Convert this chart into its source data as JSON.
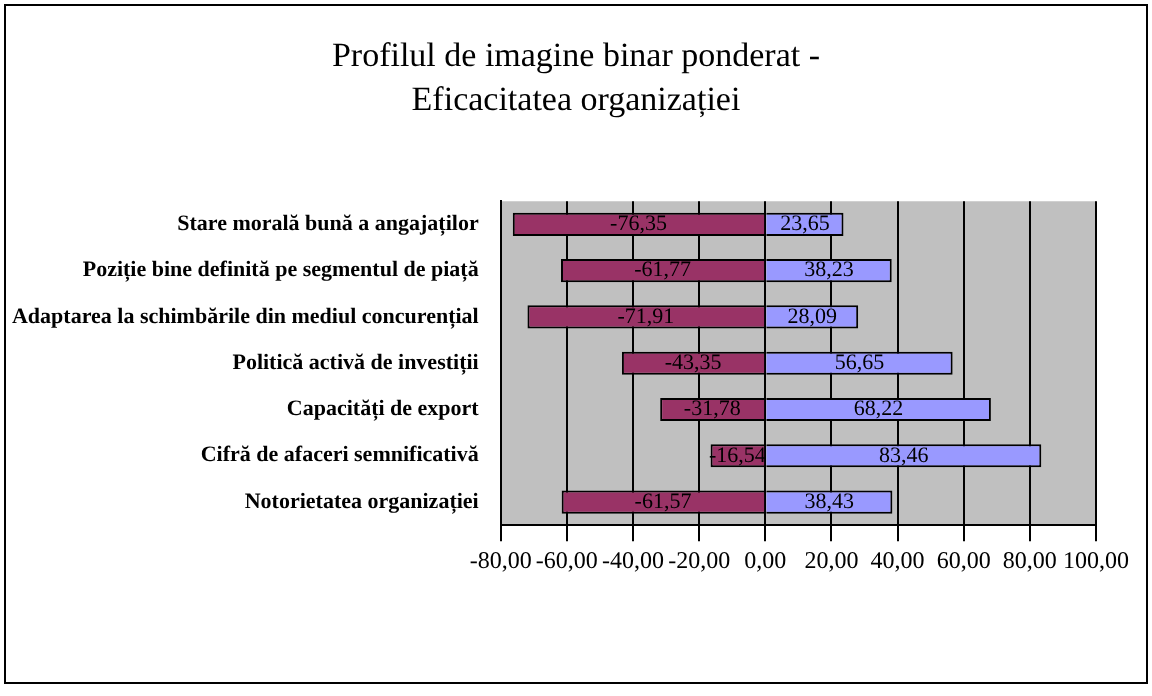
{
  "chart_data": {
    "type": "bar",
    "orientation": "horizontal",
    "stacked": true,
    "title": "Profilul de imagine binar ponderat - Eficacitatea organizației",
    "categories": [
      "Stare morală bună a angajaților",
      "Poziție bine definită pe segmentul de piață",
      "Adaptarea la schimbările din mediul concurențial",
      "Politică activă de investiții",
      "Capacități de export",
      "Cifră de afaceri semnificativă",
      "Notorietatea organizației"
    ],
    "series": [
      {
        "color": "#993366",
        "values": [
          -76.35,
          -61.77,
          -71.91,
          -43.35,
          -31.78,
          -16.54,
          -61.57
        ],
        "value_labels": [
          "-76,35",
          "-61,77",
          "-71,91",
          "-43,35",
          "-31,78",
          "-16,54",
          "-61,57"
        ]
      },
      {
        "color": "#9999ff",
        "values": [
          23.65,
          38.23,
          28.09,
          56.65,
          68.22,
          83.46,
          38.43
        ],
        "value_labels": [
          "23,65",
          "38,23",
          "28,09",
          "56,65",
          "68,22",
          "83,46",
          "38,43"
        ]
      }
    ],
    "xlim": [
      -80,
      100
    ],
    "xticks": [
      {
        "value": -80,
        "label": "-80,00"
      },
      {
        "value": -60,
        "label": "-60,00"
      },
      {
        "value": -40,
        "label": "-40,00"
      },
      {
        "value": -20,
        "label": "-20,00"
      },
      {
        "value": 0,
        "label": "0,00"
      },
      {
        "value": 20,
        "label": "20,00"
      },
      {
        "value": 40,
        "label": "40,00"
      },
      {
        "value": 60,
        "label": "60,00"
      },
      {
        "value": 80,
        "label": "80,00"
      },
      {
        "value": 100,
        "label": "100,00"
      }
    ],
    "grid": "x",
    "legend": false
  }
}
